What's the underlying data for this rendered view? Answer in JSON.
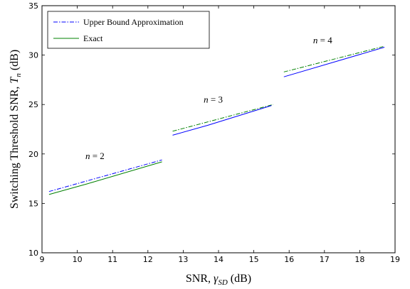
{
  "chart_data": {
    "type": "line",
    "xlabel": "SNR, γ_SD (dB)",
    "xlabel_parts": {
      "main": "SNR, ",
      "var": "γ",
      "sub": "SD",
      "unit": " (dB)"
    },
    "ylabel": "Switching Threshold SNR, T_n (dB)",
    "ylabel_parts": {
      "main": "Switching Threshold SNR, ",
      "var": "T",
      "sub": "n",
      "unit": " (dB)"
    },
    "xlim": [
      9,
      19
    ],
    "ylim": [
      10,
      35
    ],
    "xticks": [
      9,
      10,
      11,
      12,
      13,
      14,
      15,
      16,
      17,
      18,
      19
    ],
    "yticks": [
      10,
      15,
      20,
      25,
      30,
      35
    ],
    "grid": false,
    "legend_position": "top-left",
    "legend": [
      {
        "name": "Upper Bound Approximation",
        "style": "dashdot",
        "color": "#0000ff"
      },
      {
        "name": "Exact",
        "style": "solid",
        "color": "#008000"
      }
    ],
    "series": [
      {
        "name": "Upper Bound Approximation",
        "group": "n = 2",
        "color": "#0000ff",
        "style": "dashdot",
        "x": [
          9.2,
          12.4
        ],
        "y": [
          16.2,
          19.4
        ]
      },
      {
        "name": "Exact",
        "group": "n = 2",
        "color": "#008000",
        "style": "solid",
        "x": [
          9.2,
          10.3,
          12.4
        ],
        "y": [
          15.9,
          17.0,
          19.2
        ]
      },
      {
        "name": "Upper Bound Approximation",
        "group": "n = 3",
        "color": "#008000",
        "style": "dashdot",
        "x": [
          12.7,
          15.55
        ],
        "y": [
          22.3,
          25.0
        ]
      },
      {
        "name": "Exact",
        "group": "n = 3",
        "color": "#0000ff",
        "style": "solid",
        "x": [
          12.7,
          13.7,
          15.5
        ],
        "y": [
          21.9,
          22.9,
          24.9
        ]
      },
      {
        "name": "Upper Bound Approximation",
        "group": "n = 4",
        "color": "#008000",
        "style": "dashdot",
        "x": [
          15.85,
          18.7
        ],
        "y": [
          28.3,
          30.9
        ]
      },
      {
        "name": "Exact",
        "group": "n = 4",
        "color": "#0000ff",
        "style": "solid",
        "x": [
          15.85,
          18.7
        ],
        "y": [
          27.8,
          30.8
        ]
      }
    ],
    "annotations": [
      {
        "var": "n",
        "rest": " = 2",
        "x": 10.5,
        "y": 19.5
      },
      {
        "var": "n",
        "rest": " = 3",
        "x": 13.85,
        "y": 25.2
      },
      {
        "var": "n",
        "rest": " = 4",
        "x": 16.95,
        "y": 31.2
      }
    ]
  }
}
